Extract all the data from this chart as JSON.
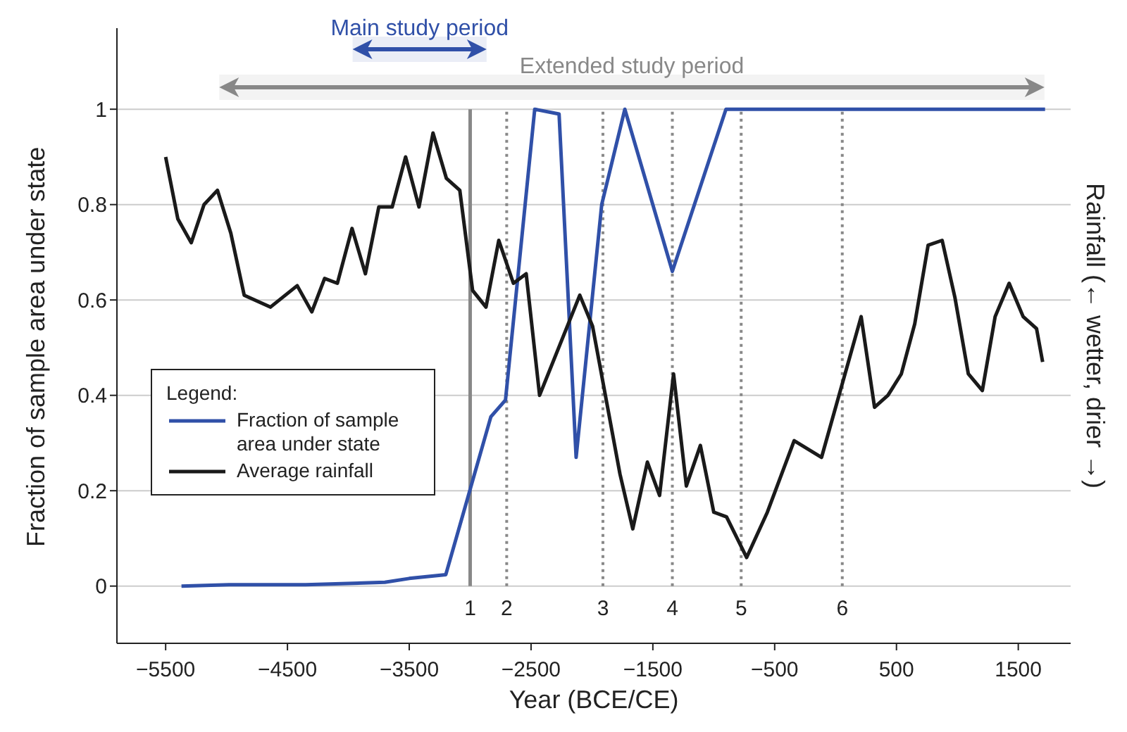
{
  "chart_data": {
    "type": "line",
    "xlabel": "Year (BCE/CE)",
    "ylabel": "Fraction of sample area under state",
    "y2label": "Rainfall (← wetter, drier →)",
    "legend_title": "Legend:",
    "xlim": [
      -5900,
      1930
    ],
    "ylim": [
      -0.12,
      1.17
    ],
    "xticks": [
      {
        "value": -5500,
        "label": "−5500"
      },
      {
        "value": -4500,
        "label": "−4500"
      },
      {
        "value": -3500,
        "label": "−3500"
      },
      {
        "value": -2500,
        "label": "−2500"
      },
      {
        "value": -1500,
        "label": "−1500"
      },
      {
        "value": -500,
        "label": "−500"
      },
      500,
      1500
    ],
    "yticks": [
      0,
      0.2,
      0.4,
      0.6,
      0.8,
      1
    ],
    "grid": "y",
    "legend": "bottom left",
    "marker": "none",
    "line_style": "solid",
    "series": [
      {
        "name": "Fraction of sample area under state",
        "color": "#3050a8",
        "x": [
          -5370,
          -4980,
          -4350,
          -3700,
          -3500,
          -3200,
          -2830,
          -2710,
          -2470,
          -2270,
          -2130,
          -1920,
          -1730,
          -1340,
          -900,
          1720
        ],
        "values": [
          0,
          0.003,
          0.003,
          0.008,
          0.016,
          0.024,
          0.355,
          0.39,
          1,
          0.99,
          0.27,
          0.8,
          1,
          0.66,
          1,
          1
        ]
      },
      {
        "name": "Average rainfall",
        "color": "#1a1a1a",
        "x": [
          -5500,
          -5400,
          -5290,
          -5185,
          -5075,
          -4965,
          -4855,
          -4640,
          -4420,
          -4300,
          -4195,
          -4090,
          -3970,
          -3860,
          -3750,
          -3640,
          -3530,
          -3420,
          -3305,
          -3195,
          -3085,
          -2980,
          -2870,
          -2765,
          -2645,
          -2540,
          -2430,
          -2100,
          -1995,
          -1770,
          -1665,
          -1545,
          -1445,
          -1330,
          -1225,
          -1110,
          -1000,
          -895,
          -730,
          -560,
          -340,
          -115,
          210,
          320,
          430,
          540,
          650,
          760,
          875,
          980,
          1090,
          1205,
          1310,
          1425,
          1540,
          1650,
          1700
        ],
        "values": [
          0.9,
          0.77,
          0.72,
          0.8,
          0.83,
          0.74,
          0.61,
          0.585,
          0.63,
          0.575,
          0.645,
          0.635,
          0.75,
          0.655,
          0.795,
          0.795,
          0.9,
          0.795,
          0.95,
          0.855,
          0.83,
          0.62,
          0.585,
          0.725,
          0.635,
          0.655,
          0.4,
          0.61,
          0.545,
          0.235,
          0.12,
          0.26,
          0.19,
          0.445,
          0.21,
          0.295,
          0.155,
          0.145,
          0.06,
          0.155,
          0.305,
          0.27,
          0.565,
          0.375,
          0.4,
          0.445,
          0.55,
          0.715,
          0.725,
          0.605,
          0.445,
          0.41,
          0.565,
          0.635,
          0.565,
          0.54,
          0.47
        ]
      }
    ],
    "ref_lines": [
      {
        "axis": "x",
        "value": -3000,
        "color": "#888888",
        "line_style": "solid"
      },
      {
        "axis": "x",
        "value": -2700,
        "color": "#888888",
        "line_style": "dotted"
      },
      {
        "axis": "x",
        "value": -1910,
        "color": "#888888",
        "line_style": "dotted"
      },
      {
        "axis": "x",
        "value": -1340,
        "color": "#888888",
        "line_style": "dotted"
      },
      {
        "axis": "x",
        "value": -775,
        "color": "#888888",
        "line_style": "dotted"
      },
      {
        "axis": "x",
        "value": 55,
        "color": "#888888",
        "line_style": "dotted"
      }
    ],
    "annotations": [
      {
        "text": "1",
        "x": -3000,
        "y": 0
      },
      {
        "text": "2",
        "x": -2700,
        "y": 0
      },
      {
        "text": "3",
        "x": -1910,
        "y": 0
      },
      {
        "text": "4",
        "x": -1340,
        "y": 0
      },
      {
        "text": "5",
        "x": -775,
        "y": 0
      },
      {
        "text": "6",
        "x": 55,
        "y": 0
      }
    ],
    "bands": [
      {
        "axis": "x",
        "from": -3965,
        "to": -2865,
        "label": "Main study period",
        "color": "#3050a8"
      },
      {
        "axis": "x",
        "from": -5060,
        "to": 1715,
        "label": "Extended study period",
        "color": "#888888"
      }
    ]
  }
}
